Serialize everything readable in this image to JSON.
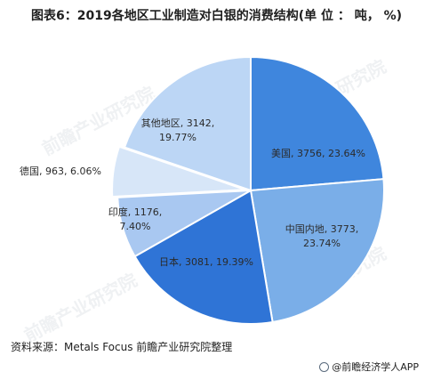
{
  "title": "图表6：2019各地区工业制造对白银的消费结构(单 位 ： 吨， %)",
  "source": "资料来源：Metals Focus  前瞻产业研究院整理",
  "brand": "@前瞻经济学人APP",
  "watermark": "前瞻产业研究院",
  "chart_data": {
    "type": "pie",
    "title": "2019各地区工业制造对白银的消费结构(单 位 ： 吨， %)",
    "slices": [
      {
        "name": "美国",
        "value": 3756,
        "pct": "23.64%",
        "label": "美国, 3756, 23.64%",
        "color": "#3f86dd"
      },
      {
        "name": "中国内地",
        "value": 3773,
        "pct": "23.74%",
        "label": "中国内地, 3773, 23.74%",
        "color": "#7aaee8"
      },
      {
        "name": "日本",
        "value": 3081,
        "pct": "19.39%",
        "label": "日本, 3081, 19.39%",
        "color": "#2f74d6"
      },
      {
        "name": "印度",
        "value": 1176,
        "pct": "7.40%",
        "label": "印度, 1176, 7.40%",
        "color": "#a9c8f1"
      },
      {
        "name": "德国",
        "value": 963,
        "pct": "6.06%",
        "label": "德国, 963, 6.06%",
        "color": "#d7e6f8"
      },
      {
        "name": "其他地区",
        "value": 3142,
        "pct": "19.77%",
        "label": "其他地区, 3142, 19.77%",
        "color": "#bcd6f5"
      }
    ]
  }
}
